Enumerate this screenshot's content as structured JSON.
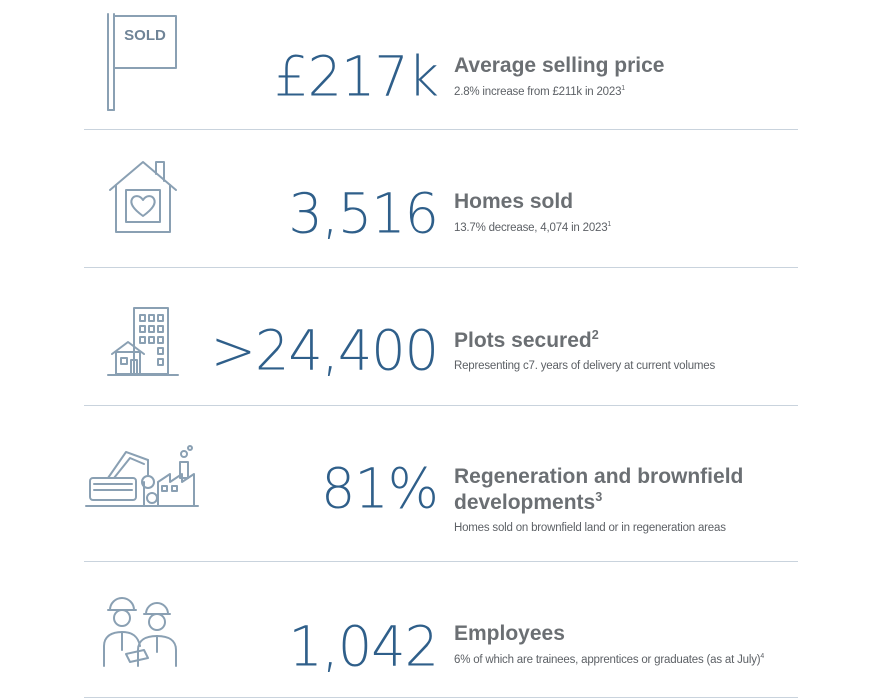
{
  "stats": [
    {
      "icon": "sold-sign-icon",
      "icon_text": "SOLD",
      "value": "£217k",
      "title": "Average selling price",
      "title_sup": "",
      "title_line2": "",
      "title_line2_sup": "",
      "subtitle": "2.8% increase from £211k in 2023",
      "subtitle_sup": "1"
    },
    {
      "icon": "house-heart-icon",
      "value": "3,516",
      "title": "Homes sold",
      "title_sup": "",
      "subtitle": "13.7% decrease, 4,074 in 2023",
      "subtitle_sup": "1"
    },
    {
      "icon": "buildings-icon",
      "value": ">24,400",
      "title": "Plots secured",
      "title_sup": "2",
      "subtitle": "Representing c7. years of delivery at current volumes",
      "subtitle_sup": ""
    },
    {
      "icon": "demolition-factory-icon",
      "value": "81%",
      "title": "Regeneration and brownfield",
      "title_line2": "developments",
      "title_line2_sup": "3",
      "subtitle": "Homes sold on brownfield land or in regeneration areas",
      "subtitle_sup": ""
    },
    {
      "icon": "construction-workers-icon",
      "value": "1,042",
      "title": "Employees",
      "title_sup": "",
      "subtitle": "6% of which are trainees, apprentices or graduates (as at July)",
      "subtitle_sup": "4"
    }
  ],
  "colors": {
    "value": "#2f5f8a",
    "title": "#6b6f73",
    "icon_stroke": "#8aa0b3",
    "divider": "#c9d3dd"
  }
}
